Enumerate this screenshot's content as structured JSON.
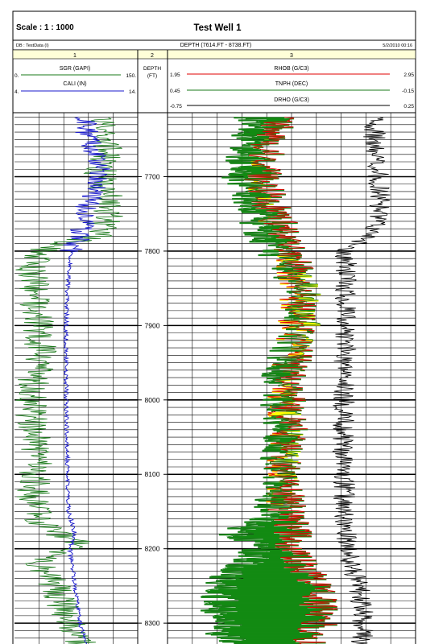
{
  "header": {
    "scale": "Scale : 1 : 1000",
    "well_title": "Test Well 1",
    "db_label": "DB : TestData (I)",
    "depth_range": "DEPTH (7614.FT - 8738.FT)",
    "date": "5/2/2010 00:16"
  },
  "tracks": {
    "track1_number": "1",
    "track2_number": "2",
    "track3_number": "3",
    "depth_title_line1": "DEPTH",
    "depth_title_line2": "(FT)"
  },
  "curves": {
    "sgr": {
      "name": "SGR (GAPI)",
      "left": "0.",
      "right": "150.",
      "color": "#1a7a1a"
    },
    "cali": {
      "name": "CALI (IN)",
      "left": "4.",
      "right": "14.",
      "color": "#1a1acc"
    },
    "rhob": {
      "name": "RHOB (G/C3)",
      "left": "1.95",
      "right": "2.95",
      "color": "#e00000"
    },
    "tnph": {
      "name": "TNPH (DEC)",
      "left": "0.45",
      "right": "-0.15",
      "color": "#1a7a1a"
    },
    "drho": {
      "name": "DRHO (G/C3)",
      "left": "-0.75",
      "right": "0.25",
      "color": "#000000"
    }
  },
  "fills": {
    "shale_green": "#138a13",
    "sand_yellow": "#ffff00",
    "border_orange": "#c8782a"
  },
  "chart_data": {
    "type": "line",
    "title": "Test Well 1",
    "depth_unit": "FT",
    "depth_range": [
      7614,
      8738
    ],
    "visible_depth_range": [
      7614,
      8328
    ],
    "depth_ticks": [
      "7700",
      "7800",
      "7900",
      "8000",
      "8100",
      "8200",
      "8300"
    ],
    "depth_tick_values": [
      7700,
      7800,
      7900,
      8000,
      8100,
      8200,
      8300
    ],
    "series": [
      {
        "name": "SGR (GAPI)",
        "track": 1,
        "scale": [
          0,
          150
        ],
        "depth": [
          7620,
          7660,
          7700,
          7740,
          7780,
          7795,
          7820,
          7860,
          7900,
          7940,
          7980,
          8020,
          8060,
          8100,
          8140,
          8170,
          8190,
          8220,
          8250,
          8280,
          8310,
          8325
        ],
        "values": [
          108,
          112,
          104,
          118,
          100,
          40,
          20,
          25,
          30,
          32,
          22,
          20,
          28,
          25,
          22,
          35,
          75,
          30,
          50,
          60,
          72,
          80
        ]
      },
      {
        "name": "CALI (IN)",
        "track": 1,
        "scale": [
          4,
          14
        ],
        "depth": [
          7620,
          7660,
          7700,
          7740,
          7780,
          7800,
          7850,
          7900,
          8000,
          8100,
          8150,
          8180,
          8200,
          8250,
          8300,
          8325
        ],
        "values": [
          9.6,
          10.2,
          11.0,
          9.9,
          9.3,
          8.6,
          8.3,
          8.2,
          8.2,
          8.3,
          8.4,
          8.9,
          8.5,
          8.9,
          9.3,
          9.8
        ]
      },
      {
        "name": "RHOB (G/C3)",
        "track": 3,
        "scale": [
          1.95,
          2.95
        ],
        "depth": [
          7620,
          7660,
          7700,
          7740,
          7780,
          7800,
          7850,
          7900,
          7950,
          8000,
          8050,
          8100,
          8150,
          8180,
          8200,
          8250,
          8300,
          8325
        ],
        "values": [
          2.4,
          2.36,
          2.33,
          2.37,
          2.42,
          2.45,
          2.48,
          2.47,
          2.45,
          2.43,
          2.44,
          2.42,
          2.43,
          2.46,
          2.44,
          2.55,
          2.57,
          2.52
        ]
      },
      {
        "name": "TNPH (DEC)",
        "track": 3,
        "scale": [
          0.45,
          -0.15
        ],
        "depth": [
          7620,
          7660,
          7700,
          7740,
          7780,
          7800,
          7850,
          7900,
          7950,
          8000,
          8050,
          8100,
          8150,
          8180,
          8200,
          8250,
          8300,
          8325
        ],
        "values": [
          0.24,
          0.26,
          0.27,
          0.24,
          0.22,
          0.2,
          0.12,
          0.13,
          0.17,
          0.18,
          0.17,
          0.18,
          0.2,
          0.28,
          0.22,
          0.33,
          0.32,
          0.3
        ]
      },
      {
        "name": "DRHO (G/C3)",
        "track": 3,
        "scale": [
          -0.75,
          0.25
        ],
        "depth": [
          7620,
          7660,
          7700,
          7740,
          7780,
          7800,
          7850,
          7900,
          8000,
          8100,
          8200,
          8250,
          8300,
          8325
        ],
        "values": [
          0.09,
          0.08,
          0.1,
          0.11,
          0.07,
          -0.03,
          -0.03,
          -0.03,
          -0.04,
          -0.04,
          -0.03,
          0.02,
          0.04,
          0.03
        ]
      }
    ]
  }
}
